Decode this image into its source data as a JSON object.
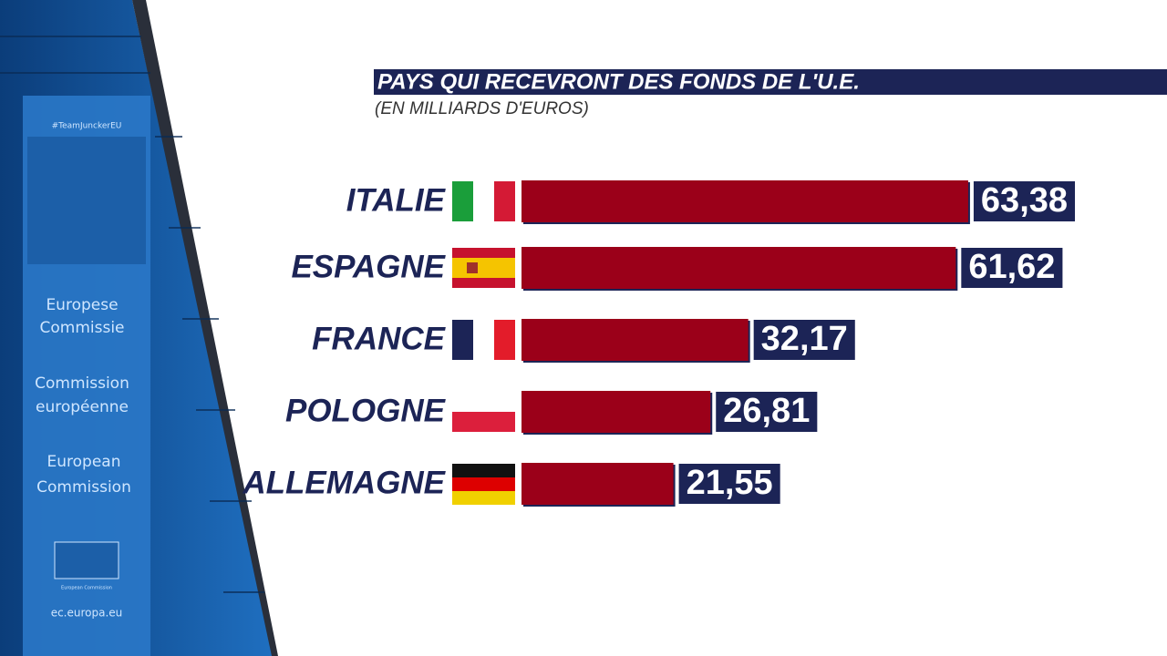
{
  "chart_data": {
    "type": "bar",
    "orientation": "horizontal",
    "title": "PAYS QUI RECEVRONT DES FONDS DE L'U.E.",
    "subtitle": "(EN MILLIARDS D'EUROS)",
    "categories": [
      "ITALIE",
      "ESPAGNE",
      "FRANCE",
      "POLOGNE",
      "ALLEMAGNE"
    ],
    "values": [
      63.38,
      61.62,
      32.17,
      26.81,
      21.55
    ],
    "value_labels": [
      "63,38",
      "61,62",
      "32,17",
      "26,81",
      "21,55"
    ],
    "color": "#9b0019",
    "label_box_color": "#1c2456"
  },
  "backdrop": {
    "hashtag": "#TeamJunckerEU",
    "banner": [
      "Europese",
      "Commissie",
      "Commission",
      "européenne",
      "European",
      "Commission"
    ],
    "logo_text": "European Commission",
    "url": "ec.europa.eu"
  }
}
